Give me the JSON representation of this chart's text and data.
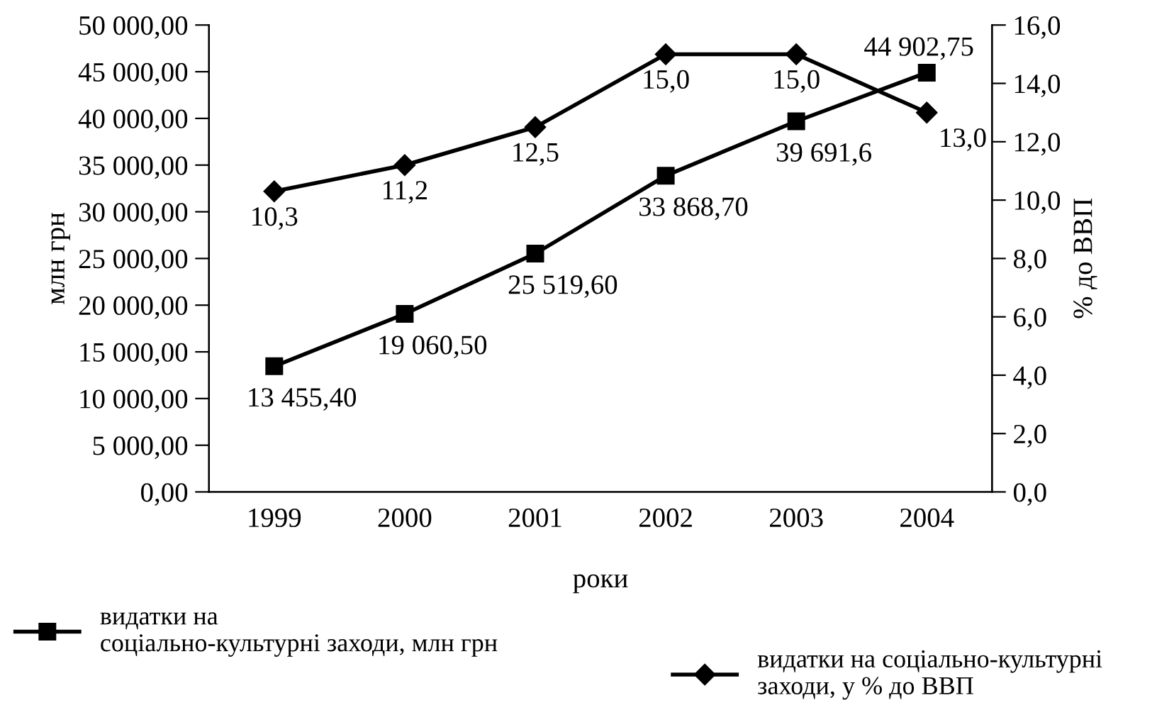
{
  "chart_data": {
    "type": "line",
    "xlabel": "роки",
    "ylabel": "млн грн",
    "y2label": "% до ВВП",
    "categories": [
      "1999",
      "2000",
      "2001",
      "2002",
      "2003",
      "2004"
    ],
    "series": [
      {
        "name": "видатки на соціально-культурні заходи, млн грн",
        "color": "#000000",
        "marker": "square",
        "values": [
          13455.4,
          19060.5,
          25519.6,
          33868.7,
          39691.6,
          44902.75
        ],
        "value_labels": [
          "13 455,40",
          "19 060,50",
          "25 519,60",
          "33 868,70",
          "39 691,6",
          "44 902,75"
        ]
      },
      {
        "name": "видатки на соціально-культурні заходи, у % до ВВП",
        "color": "#000000",
        "marker": "diamond",
        "axis": "y2",
        "values": [
          10.3,
          11.2,
          12.5,
          15.0,
          15.0,
          13.0
        ],
        "value_labels": [
          "10,3",
          "11,2",
          "12,5",
          "15,0",
          "15,0",
          "13,0"
        ]
      }
    ],
    "ylim": [
      0,
      50000
    ],
    "yticks": [
      {
        "value": 0,
        "label": "0,00"
      },
      {
        "value": 5000,
        "label": "5 000,00"
      },
      {
        "value": 10000,
        "label": "10 000,00"
      },
      {
        "value": 15000,
        "label": "15 000,00"
      },
      {
        "value": 20000,
        "label": "20 000,00"
      },
      {
        "value": 25000,
        "label": "25 000,00"
      },
      {
        "value": 30000,
        "label": "30 000,00"
      },
      {
        "value": 35000,
        "label": "35 000,00"
      },
      {
        "value": 40000,
        "label": "40 000,00"
      },
      {
        "value": 45000,
        "label": "45 000,00"
      },
      {
        "value": 50000,
        "label": "50 000,00"
      }
    ],
    "y2lim": [
      0,
      16
    ],
    "y2ticks": [
      {
        "value": 0,
        "label": "0,0"
      },
      {
        "value": 2,
        "label": "2,0"
      },
      {
        "value": 4,
        "label": "4,0"
      },
      {
        "value": 6,
        "label": "6,0"
      },
      {
        "value": 8,
        "label": "8,0"
      },
      {
        "value": 10,
        "label": "10,0"
      },
      {
        "value": 12,
        "label": "12,0"
      },
      {
        "value": 14,
        "label": "14,0"
      },
      {
        "value": 16,
        "label": "16,0"
      }
    ],
    "grid": false,
    "legend": "bottom",
    "line_style": "solid"
  }
}
